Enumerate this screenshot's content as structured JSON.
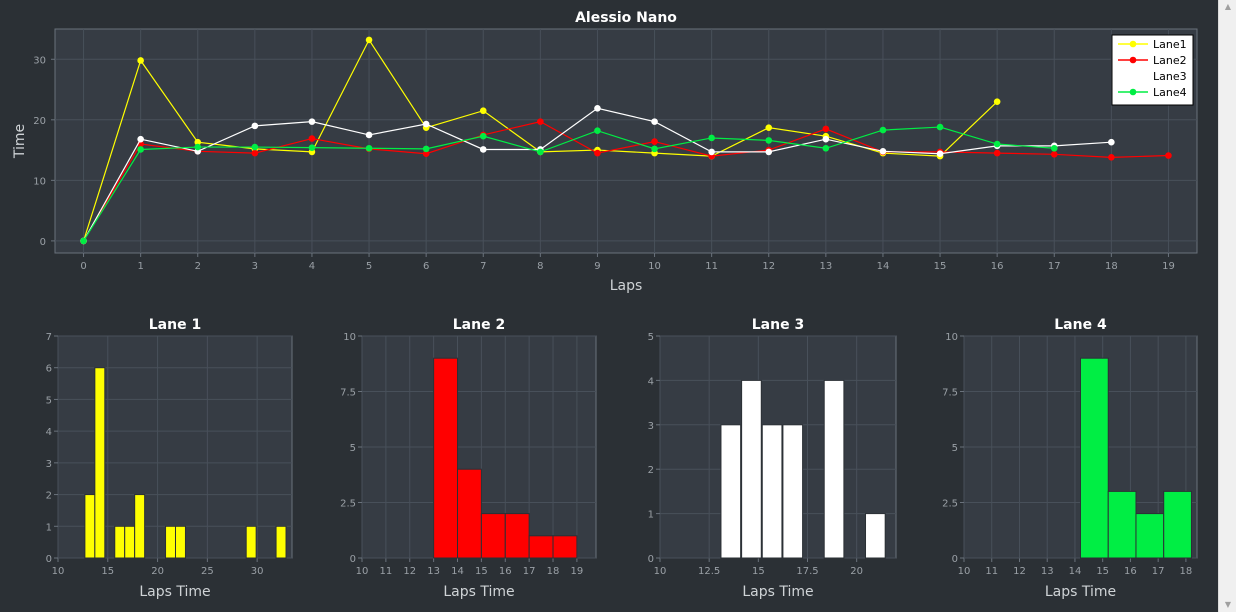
{
  "chart_data": [
    {
      "type": "line",
      "title": "Alessio Nano",
      "xlabel": "Laps",
      "ylabel": "Time",
      "xlim": [
        -0.5,
        19.5
      ],
      "ylim": [
        -2,
        35
      ],
      "xticks": [
        0,
        1,
        2,
        3,
        4,
        5,
        6,
        7,
        8,
        9,
        10,
        11,
        12,
        13,
        14,
        15,
        16,
        17,
        18,
        19
      ],
      "yticks": [
        0,
        10,
        20,
        30
      ],
      "grid": true,
      "legend_position": "top-right",
      "series": [
        {
          "name": "Lane1",
          "color": "#ffff00",
          "x": [
            0,
            1,
            2,
            3,
            4,
            5,
            6,
            7,
            8,
            9,
            10,
            11,
            12,
            13,
            14,
            15,
            16
          ],
          "y": [
            0,
            29.8,
            16.3,
            15.2,
            14.7,
            33.2,
            18.7,
            21.5,
            14.7,
            15.0,
            14.5,
            14.0,
            18.7,
            17.3,
            14.5,
            14.0,
            23.0
          ]
        },
        {
          "name": "Lane2",
          "color": "#ff0000",
          "x": [
            0,
            1,
            2,
            3,
            4,
            5,
            6,
            7,
            8,
            9,
            10,
            11,
            12,
            13,
            14,
            15,
            16,
            17,
            18,
            19
          ],
          "y": [
            0,
            16.0,
            14.8,
            14.5,
            16.9,
            15.2,
            14.4,
            17.5,
            19.7,
            14.5,
            16.4,
            14.0,
            15.0,
            18.5,
            14.7,
            14.7,
            14.5,
            14.3,
            13.8,
            14.1
          ]
        },
        {
          "name": "Lane3",
          "color": "#ffffff",
          "x": [
            0,
            1,
            2,
            3,
            4,
            5,
            6,
            7,
            8,
            9,
            10,
            11,
            12,
            13,
            14,
            15,
            16,
            17,
            18
          ],
          "y": [
            0,
            16.8,
            14.8,
            19.0,
            19.7,
            17.5,
            19.3,
            15.1,
            15.1,
            21.9,
            19.7,
            14.7,
            14.7,
            16.8,
            14.8,
            14.4,
            15.7,
            15.7,
            16.3
          ]
        },
        {
          "name": "Lane4",
          "color": "#00ee44",
          "x": [
            0,
            1,
            2,
            3,
            4,
            5,
            6,
            7,
            8,
            9,
            10,
            11,
            12,
            13,
            14,
            15,
            16,
            17
          ],
          "y": [
            0,
            15.1,
            15.5,
            15.5,
            15.4,
            15.3,
            15.2,
            17.3,
            14.7,
            18.2,
            15.2,
            17.0,
            16.6,
            15.3,
            18.3,
            18.8,
            16.0,
            15.3
          ]
        }
      ]
    },
    {
      "type": "bar",
      "title": "Lane 1",
      "xlabel": "Laps Time",
      "color": "#ffff00",
      "xlim": [
        10,
        33.5
      ],
      "ylim": [
        0,
        7
      ],
      "xticks": [
        10,
        15,
        20,
        25,
        30
      ],
      "xtick_labels": [
        "10",
        "15",
        "20",
        "25",
        "30"
      ],
      "yticks": [
        0,
        1,
        2,
        3,
        4,
        5,
        6,
        7
      ],
      "ytick_labels": [
        "0",
        "1",
        "2",
        "3",
        "4",
        "5",
        "6",
        "7"
      ],
      "bins": [
        {
          "x0": 12.7,
          "x1": 13.7,
          "count": 2
        },
        {
          "x0": 13.7,
          "x1": 14.7,
          "count": 6
        },
        {
          "x0": 15.7,
          "x1": 16.7,
          "count": 1
        },
        {
          "x0": 16.7,
          "x1": 17.7,
          "count": 1
        },
        {
          "x0": 17.7,
          "x1": 18.7,
          "count": 2
        },
        {
          "x0": 20.8,
          "x1": 21.8,
          "count": 1
        },
        {
          "x0": 21.8,
          "x1": 22.8,
          "count": 1
        },
        {
          "x0": 28.9,
          "x1": 29.9,
          "count": 1
        },
        {
          "x0": 31.9,
          "x1": 32.9,
          "count": 1
        }
      ]
    },
    {
      "type": "bar",
      "title": "Lane 2",
      "xlabel": "Laps Time",
      "color": "#ff0000",
      "xlim": [
        10,
        19.8
      ],
      "ylim": [
        0,
        10
      ],
      "xticks": [
        10,
        11,
        12,
        13,
        14,
        15,
        16,
        17,
        18,
        19
      ],
      "xtick_labels": [
        "10",
        "11",
        "12",
        "13",
        "14",
        "15",
        "16",
        "17",
        "18",
        "19"
      ],
      "yticks": [
        0,
        2.5,
        5,
        7.5,
        10
      ],
      "ytick_labels": [
        "0",
        "2.5",
        "5",
        "7.5",
        "10"
      ],
      "bins": [
        {
          "x0": 13.0,
          "x1": 14.0,
          "count": 9
        },
        {
          "x0": 14.0,
          "x1": 15.0,
          "count": 4
        },
        {
          "x0": 15.0,
          "x1": 16.0,
          "count": 2
        },
        {
          "x0": 16.0,
          "x1": 17.0,
          "count": 2
        },
        {
          "x0": 17.0,
          "x1": 18.0,
          "count": 1
        },
        {
          "x0": 18.0,
          "x1": 19.0,
          "count": 1
        }
      ]
    },
    {
      "type": "bar",
      "title": "Lane 3",
      "xlabel": "Laps Time",
      "color": "#ffffff",
      "xlim": [
        10,
        22
      ],
      "ylim": [
        0,
        5
      ],
      "xticks": [
        10,
        12.5,
        15,
        17.5,
        20
      ],
      "xtick_labels": [
        "10",
        "12.5",
        "15",
        "17.5",
        "20"
      ],
      "yticks": [
        0,
        1,
        2,
        3,
        4,
        5
      ],
      "ytick_labels": [
        "0",
        "1",
        "2",
        "3",
        "4",
        "5"
      ],
      "bins": [
        {
          "x0": 13.1,
          "x1": 14.1,
          "count": 3
        },
        {
          "x0": 14.15,
          "x1": 15.15,
          "count": 4
        },
        {
          "x0": 15.2,
          "x1": 16.2,
          "count": 3
        },
        {
          "x0": 16.25,
          "x1": 17.25,
          "count": 3
        },
        {
          "x0": 18.35,
          "x1": 19.35,
          "count": 4
        },
        {
          "x0": 20.45,
          "x1": 21.45,
          "count": 1
        }
      ]
    },
    {
      "type": "bar",
      "title": "Lane 4",
      "xlabel": "Laps Time",
      "color": "#00ee44",
      "xlim": [
        10,
        18.4
      ],
      "ylim": [
        0,
        10
      ],
      "xticks": [
        10,
        11,
        12,
        13,
        14,
        15,
        16,
        17,
        18
      ],
      "xtick_labels": [
        "10",
        "11",
        "12",
        "13",
        "14",
        "15",
        "16",
        "17",
        "18"
      ],
      "yticks": [
        0,
        2.5,
        5,
        7.5,
        10
      ],
      "ytick_labels": [
        "0",
        "2.5",
        "5",
        "7.5",
        "10"
      ],
      "bins": [
        {
          "x0": 14.2,
          "x1": 15.2,
          "count": 9
        },
        {
          "x0": 15.2,
          "x1": 16.2,
          "count": 3
        },
        {
          "x0": 16.2,
          "x1": 17.2,
          "count": 2
        },
        {
          "x0": 17.2,
          "x1": 18.2,
          "count": 3
        }
      ]
    }
  ],
  "theme": {
    "background": "#2b3035",
    "plot_background": "#363c44",
    "grid": "#48505a",
    "axis": "#6a727c",
    "text": "#ffffff",
    "tick_text": "#9aa0a6",
    "label_text": "#cfd3d6",
    "legend_background": "#ffffff",
    "legend_text": "#000000"
  },
  "scrollbar": {
    "up_icon": "▲",
    "down_icon": "▼"
  }
}
